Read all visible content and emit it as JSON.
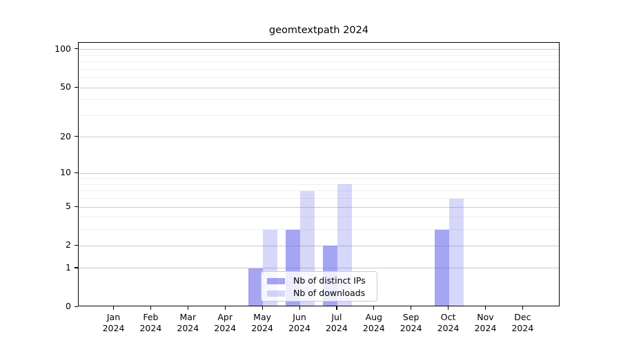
{
  "chart_data": {
    "type": "bar",
    "title": "geomtextpath 2024",
    "categories": [
      "Jan",
      "Feb",
      "Mar",
      "Apr",
      "May",
      "Jun",
      "Jul",
      "Aug",
      "Sep",
      "Oct",
      "Nov",
      "Dec"
    ],
    "x_year_label": "2024",
    "series": [
      {
        "name": "Nb of distinct IPs",
        "color": "rgba(110,110,235,0.62)",
        "values": [
          0,
          0,
          0,
          0,
          1,
          3,
          2,
          0,
          0,
          3,
          0,
          0
        ]
      },
      {
        "name": "Nb of downloads",
        "color": "rgba(110,110,235,0.28)",
        "values": [
          0,
          0,
          0,
          0,
          3,
          7,
          8,
          0,
          0,
          6,
          0,
          0
        ]
      }
    ],
    "xlabel": "",
    "ylabel": "",
    "y_scale": "log1p",
    "ylim": [
      0,
      113
    ],
    "y_ticks": [
      0,
      1,
      2,
      5,
      10,
      20,
      50,
      100
    ],
    "y_minor_ticks": [
      3,
      4,
      6,
      7,
      8,
      9,
      30,
      40,
      60,
      70,
      80,
      90
    ],
    "grid": true,
    "legend_position": "lower-center"
  },
  "colors": {
    "background": "#ffffff",
    "axis": "#000000",
    "text": "#000000",
    "grid_major": "#c9c9c9",
    "grid_minor": "#ededed",
    "legend_border": "#cccccc",
    "legend_background": "rgba(255,255,255,0.8)"
  }
}
